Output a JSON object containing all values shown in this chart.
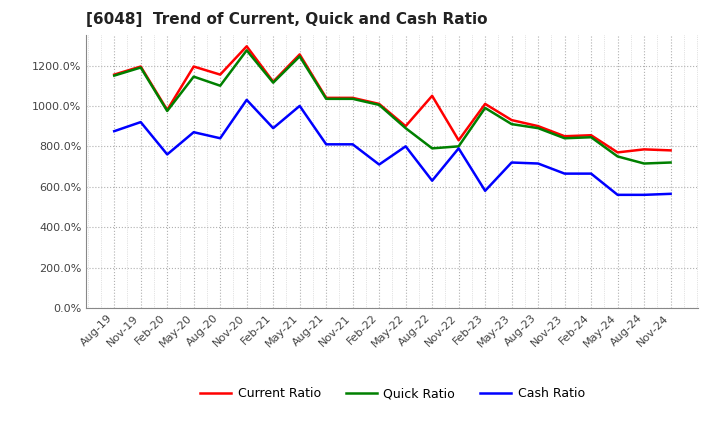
{
  "title": "[6048]  Trend of Current, Quick and Cash Ratio",
  "x_labels": [
    "Aug-19",
    "Nov-19",
    "Feb-20",
    "May-20",
    "Aug-20",
    "Nov-20",
    "Feb-21",
    "May-21",
    "Aug-21",
    "Nov-21",
    "Feb-22",
    "May-22",
    "Aug-22",
    "Nov-22",
    "Feb-23",
    "May-23",
    "Aug-23",
    "Nov-23",
    "Feb-24",
    "May-24",
    "Aug-24",
    "Nov-24"
  ],
  "current_ratio": [
    1155,
    1195,
    980,
    1195,
    1155,
    1295,
    1120,
    1255,
    1040,
    1040,
    1010,
    900,
    1050,
    830,
    1010,
    930,
    900,
    850,
    855,
    770,
    785,
    780
  ],
  "quick_ratio": [
    1150,
    1190,
    975,
    1145,
    1100,
    1275,
    1115,
    1245,
    1035,
    1035,
    1005,
    890,
    790,
    800,
    990,
    910,
    890,
    840,
    845,
    750,
    715,
    720
  ],
  "cash_ratio": [
    875,
    920,
    760,
    870,
    840,
    1030,
    890,
    1000,
    810,
    810,
    710,
    800,
    630,
    790,
    580,
    720,
    715,
    665,
    665,
    560,
    560,
    565
  ],
  "ylim": [
    0,
    1350
  ],
  "yticks": [
    0,
    200,
    400,
    600,
    800,
    1000,
    1200
  ],
  "current_color": "#ff0000",
  "quick_color": "#008000",
  "cash_color": "#0000ff",
  "background_color": "#ffffff",
  "grid_color": "#b0b0b0",
  "line_width": 1.8,
  "title_fontsize": 11,
  "tick_fontsize": 8,
  "legend_fontsize": 9
}
